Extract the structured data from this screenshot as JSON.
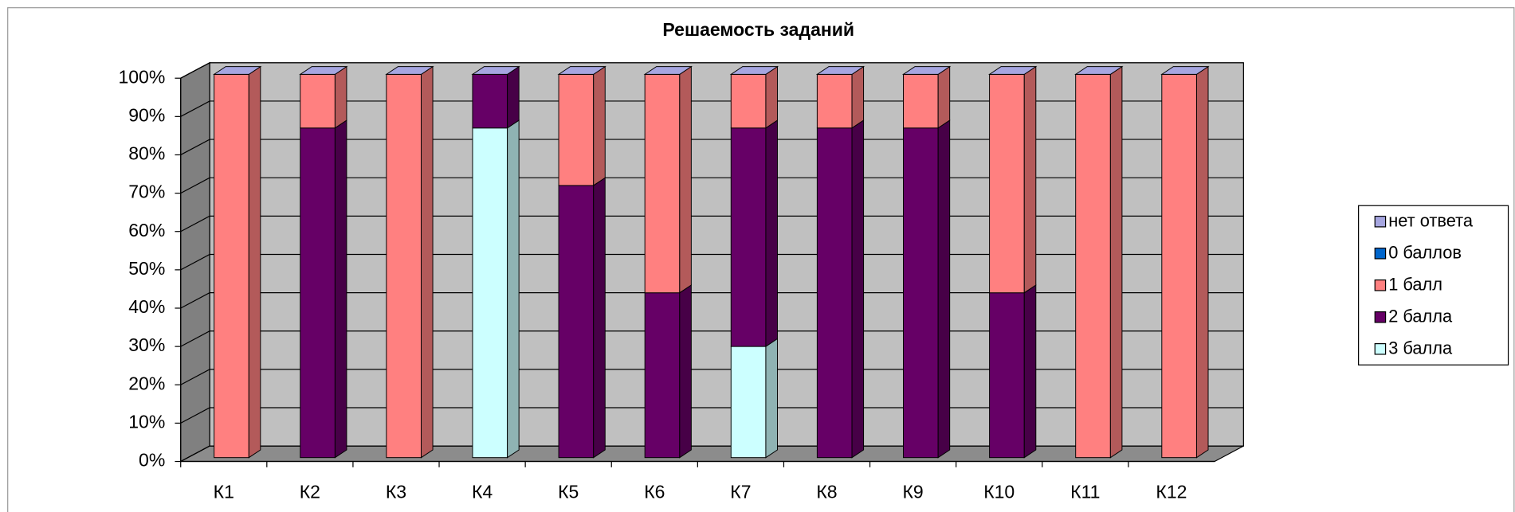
{
  "chart_data": {
    "type": "bar",
    "stacked": true,
    "title": "Решаемость заданий",
    "categories": [
      "К1",
      "К2",
      "К3",
      "К4",
      "К5",
      "К6",
      "К7",
      "К8",
      "К9",
      "К10",
      "К11",
      "К12"
    ],
    "series": [
      {
        "name": "3 балла",
        "color": "#ccffff",
        "values": [
          0,
          0,
          0,
          86,
          0,
          0,
          29,
          0,
          0,
          0,
          0,
          0
        ]
      },
      {
        "name": "2 балла",
        "color": "#660066",
        "values": [
          0,
          86,
          0,
          14,
          71,
          43,
          57,
          86,
          86,
          43,
          0,
          0
        ]
      },
      {
        "name": "1 балл",
        "color": "#ff8080",
        "values": [
          100,
          14,
          100,
          0,
          29,
          57,
          14,
          14,
          14,
          57,
          100,
          100
        ]
      },
      {
        "name": "0 баллов",
        "color": "#0066cc",
        "values": [
          0,
          0,
          0,
          0,
          0,
          0,
          0,
          0,
          0,
          0,
          0,
          0
        ]
      },
      {
        "name": "нет ответа",
        "color": "#a6a6e0",
        "values": [
          0,
          0,
          0,
          0,
          0,
          0,
          0,
          0,
          0,
          0,
          0,
          0
        ]
      }
    ],
    "ylim": [
      0,
      100
    ],
    "yticks": [
      {
        "value": 0,
        "label": "0%"
      },
      {
        "value": 10,
        "label": "10%"
      },
      {
        "value": 20,
        "label": "20%"
      },
      {
        "value": 30,
        "label": "30%"
      },
      {
        "value": 40,
        "label": "40%"
      },
      {
        "value": 50,
        "label": "50%"
      },
      {
        "value": 60,
        "label": "60%"
      },
      {
        "value": 70,
        "label": "70%"
      },
      {
        "value": 80,
        "label": "80%"
      },
      {
        "value": 90,
        "label": "90%"
      },
      {
        "value": 100,
        "label": "100%"
      }
    ],
    "grid": true,
    "legend": "right"
  }
}
